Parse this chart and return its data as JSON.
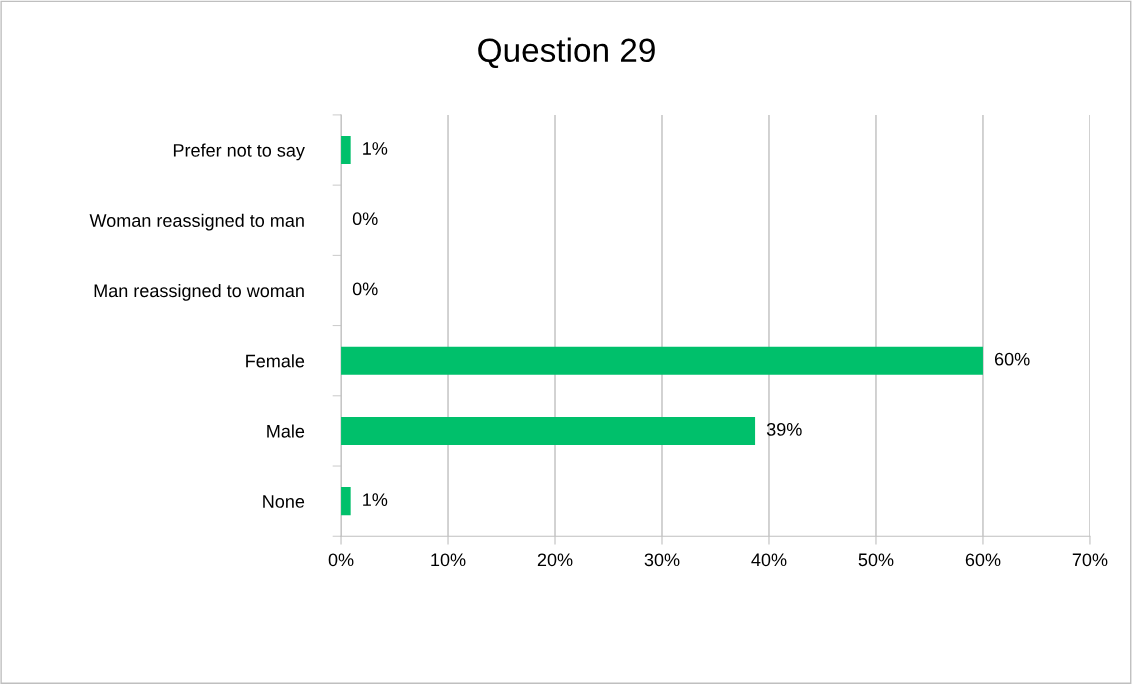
{
  "chart_data": {
    "type": "bar",
    "title": "Question 29",
    "orientation": "horizontal",
    "categories": [
      "Prefer not to say",
      "Woman reassigned to man",
      "Man reassigned to woman",
      "Female",
      "Male",
      "None"
    ],
    "values": [
      0.9,
      0,
      0,
      60,
      38.7,
      0.9
    ],
    "value_labels": [
      "1%",
      "0%",
      "0%",
      "60%",
      "39%",
      "1%"
    ],
    "color": "#00c06b",
    "xlim": [
      0,
      70
    ],
    "xticks": [
      {
        "value": 0,
        "label": "0%"
      },
      {
        "value": 10,
        "label": "10%"
      },
      {
        "value": 20,
        "label": "20%"
      },
      {
        "value": 30,
        "label": "30%"
      },
      {
        "value": 40,
        "label": "40%"
      },
      {
        "value": 50,
        "label": "50%"
      },
      {
        "value": 60,
        "label": "60%"
      },
      {
        "value": 70,
        "label": "70%"
      }
    ],
    "grid": "x",
    "legend": false
  }
}
